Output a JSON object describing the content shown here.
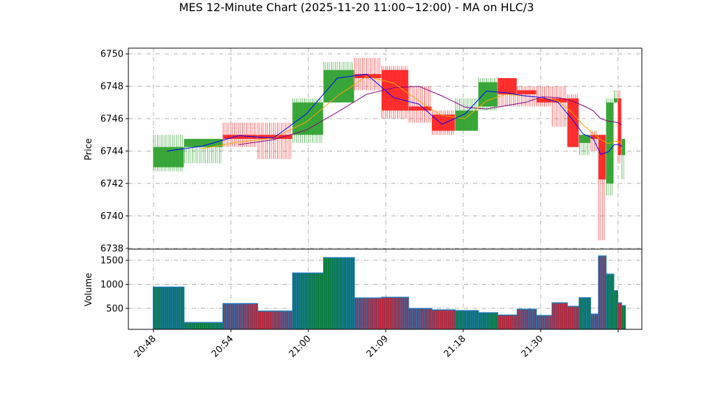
{
  "chart_data": {
    "type": "candlestick",
    "title": "MES 12-Minute Chart (2025-11-20 11:00~12:00) - MA on HLC/3",
    "price_panel": {
      "ylabel": "Price",
      "ylim": [
        6737.95,
        6750.35
      ],
      "yticks": [
        "6738",
        "6740",
        "6742",
        "6744",
        "6746",
        "6748",
        "6750"
      ],
      "grid": true
    },
    "volume_panel": {
      "ylabel": "Volume",
      "ylim": [
        63,
        1733
      ],
      "yticks": [
        "500",
        "1000",
        "1500"
      ],
      "grid": true,
      "bar_color": "#1f77b4"
    },
    "xticks": [
      "20:48",
      "20:54",
      "21:00",
      "21:09",
      "21:18",
      "21:30",
      ""
    ],
    "colors": {
      "up": "#2ca02c",
      "down": "#ff2020",
      "ma_fast": "#0000ff",
      "ma_mid": "#ffa500",
      "ma_slow": "#800080"
    },
    "groups": [
      {
        "bars": 8,
        "o": 6743.0,
        "h": 6745.0,
        "l": 6742.75,
        "c": 6744.25,
        "v": 945,
        "ma_fast": 6744.0,
        "ma_mid": null,
        "ma_slow": null
      },
      {
        "bars": 10,
        "o": 6744.25,
        "h": 6744.75,
        "l": 6743.25,
        "c": 6744.75,
        "v": 208,
        "ma_fast": 6744.3,
        "ma_mid": 6744.15,
        "ma_slow": null
      },
      {
        "bars": 9,
        "o": 6745.0,
        "h": 6745.75,
        "l": 6744.25,
        "c": 6744.75,
        "v": 602,
        "ma_fast": 6744.95,
        "ma_mid": 6744.55,
        "ma_slow": 6744.4
      },
      {
        "bars": 9,
        "o": 6745.0,
        "h": 6745.75,
        "l": 6743.5,
        "c": 6744.75,
        "v": 446,
        "ma_fast": 6744.8,
        "ma_mid": 6744.8,
        "ma_slow": 6744.7
      },
      {
        "bars": 8,
        "o": 6745.0,
        "h": 6747.25,
        "l": 6744.5,
        "c": 6747.0,
        "v": 1238,
        "ma_fast": 6746.3,
        "ma_mid": 6745.8,
        "ma_slow": 6745.3
      },
      {
        "bars": 8,
        "o": 6747.0,
        "h": 6749.5,
        "l": 6747.0,
        "c": 6749.0,
        "v": 1558,
        "ma_fast": 6748.5,
        "ma_mid": 6747.4,
        "ma_slow": 6746.4
      },
      {
        "bars": 7,
        "o": 6748.75,
        "h": 6749.75,
        "l": 6747.75,
        "c": 6748.5,
        "v": 719,
        "ma_fast": 6748.75,
        "ma_mid": 6748.6,
        "ma_slow": 6747.5
      },
      {
        "bars": 7,
        "o": 6749.0,
        "h": 6749.25,
        "l": 6746.0,
        "c": 6746.5,
        "v": 733,
        "ma_fast": 6747.3,
        "ma_mid": 6748.2,
        "ma_slow": 6747.9
      },
      {
        "bars": 6,
        "o": 6746.75,
        "h": 6748.0,
        "l": 6745.75,
        "c": 6746.5,
        "v": 500,
        "ma_fast": 6746.9,
        "ma_mid": 6747.1,
        "ma_slow": 6748.0
      },
      {
        "bars": 6,
        "o": 6746.25,
        "h": 6746.5,
        "l": 6745.0,
        "c": 6745.25,
        "v": 471,
        "ma_fast": 6745.65,
        "ma_mid": 6746.2,
        "ma_slow": 6747.4
      },
      {
        "bars": 6,
        "o": 6745.25,
        "h": 6747.25,
        "l": 6745.25,
        "c": 6746.5,
        "v": 456,
        "ma_fast": 6746.3,
        "ma_mid": 6746.0,
        "ma_slow": 6746.7
      },
      {
        "bars": 5,
        "o": 6746.75,
        "h": 6748.5,
        "l": 6746.5,
        "c": 6748.25,
        "v": 412,
        "ma_fast": 6747.7,
        "ma_mid": 6747.1,
        "ma_slow": 6746.6
      },
      {
        "bars": 5,
        "o": 6748.5,
        "h": 6748.5,
        "l": 6746.75,
        "c": 6747.5,
        "v": 363,
        "ma_fast": 6747.6,
        "ma_mid": 6747.5,
        "ma_slow": 6746.8
      },
      {
        "bars": 5,
        "o": 6747.75,
        "h": 6748.0,
        "l": 6746.75,
        "c": 6747.5,
        "v": 485,
        "ma_fast": 6747.4,
        "ma_mid": 6747.4,
        "ma_slow": 6747.0
      },
      {
        "bars": 4,
        "o": 6747.25,
        "h": 6748.0,
        "l": 6746.75,
        "c": 6747.0,
        "v": 354,
        "ma_fast": 6747.3,
        "ma_mid": 6747.3,
        "ma_slow": 6747.35
      },
      {
        "bars": 4,
        "o": 6747.25,
        "h": 6748.0,
        "l": 6745.5,
        "c": 6747.0,
        "v": 617,
        "ma_fast": 6747.0,
        "ma_mid": 6747.1,
        "ma_slow": 6747.3
      },
      {
        "bars": 3,
        "o": 6747.25,
        "h": 6747.5,
        "l": 6744.25,
        "c": 6744.25,
        "v": 544,
        "ma_fast": 6746.0,
        "ma_mid": 6746.4,
        "ma_slow": 6747.1
      },
      {
        "bars": 3,
        "o": 6744.5,
        "h": 6745.0,
        "l": 6743.75,
        "c": 6745.0,
        "v": 723,
        "ma_fast": 6745.05,
        "ma_mid": 6745.6,
        "ma_slow": 6746.8
      },
      {
        "bars": 2,
        "o": 6745.0,
        "h": 6745.25,
        "l": 6744.0,
        "c": 6744.75,
        "v": 383,
        "ma_fast": 6744.8,
        "ma_mid": 6745.1,
        "ma_slow": 6746.5
      },
      {
        "bars": 2,
        "o": 6745.0,
        "h": 6745.0,
        "l": 6738.5,
        "c": 6742.25,
        "v": 1593,
        "ma_fast": 6743.8,
        "ma_mid": 6744.7,
        "ma_slow": 6746.0
      },
      {
        "bars": 2,
        "o": 6742.0,
        "h": 6747.25,
        "l": 6741.25,
        "c": 6747.0,
        "v": 1214,
        "ma_fast": 6743.95,
        "ma_mid": 6744.45,
        "ma_slow": 6745.85
      },
      {
        "bars": 1,
        "o": 6747.0,
        "h": 6747.75,
        "l": 6747.0,
        "c": 6747.25,
        "v": 869,
        "ma_fast": 6744.4,
        "ma_mid": 6744.6,
        "ma_slow": 6745.8
      },
      {
        "bars": 1,
        "o": 6747.25,
        "h": 6747.75,
        "l": 6743.25,
        "c": 6743.75,
        "v": 617,
        "ma_fast": 6744.4,
        "ma_mid": 6744.6,
        "ma_slow": 6745.75
      },
      {
        "bars": 1,
        "o": 6743.75,
        "h": 6744.75,
        "l": 6742.25,
        "c": 6744.75,
        "v": 558,
        "ma_fast": 6744.3,
        "ma_mid": 6744.5,
        "ma_slow": 6745.6
      }
    ]
  }
}
